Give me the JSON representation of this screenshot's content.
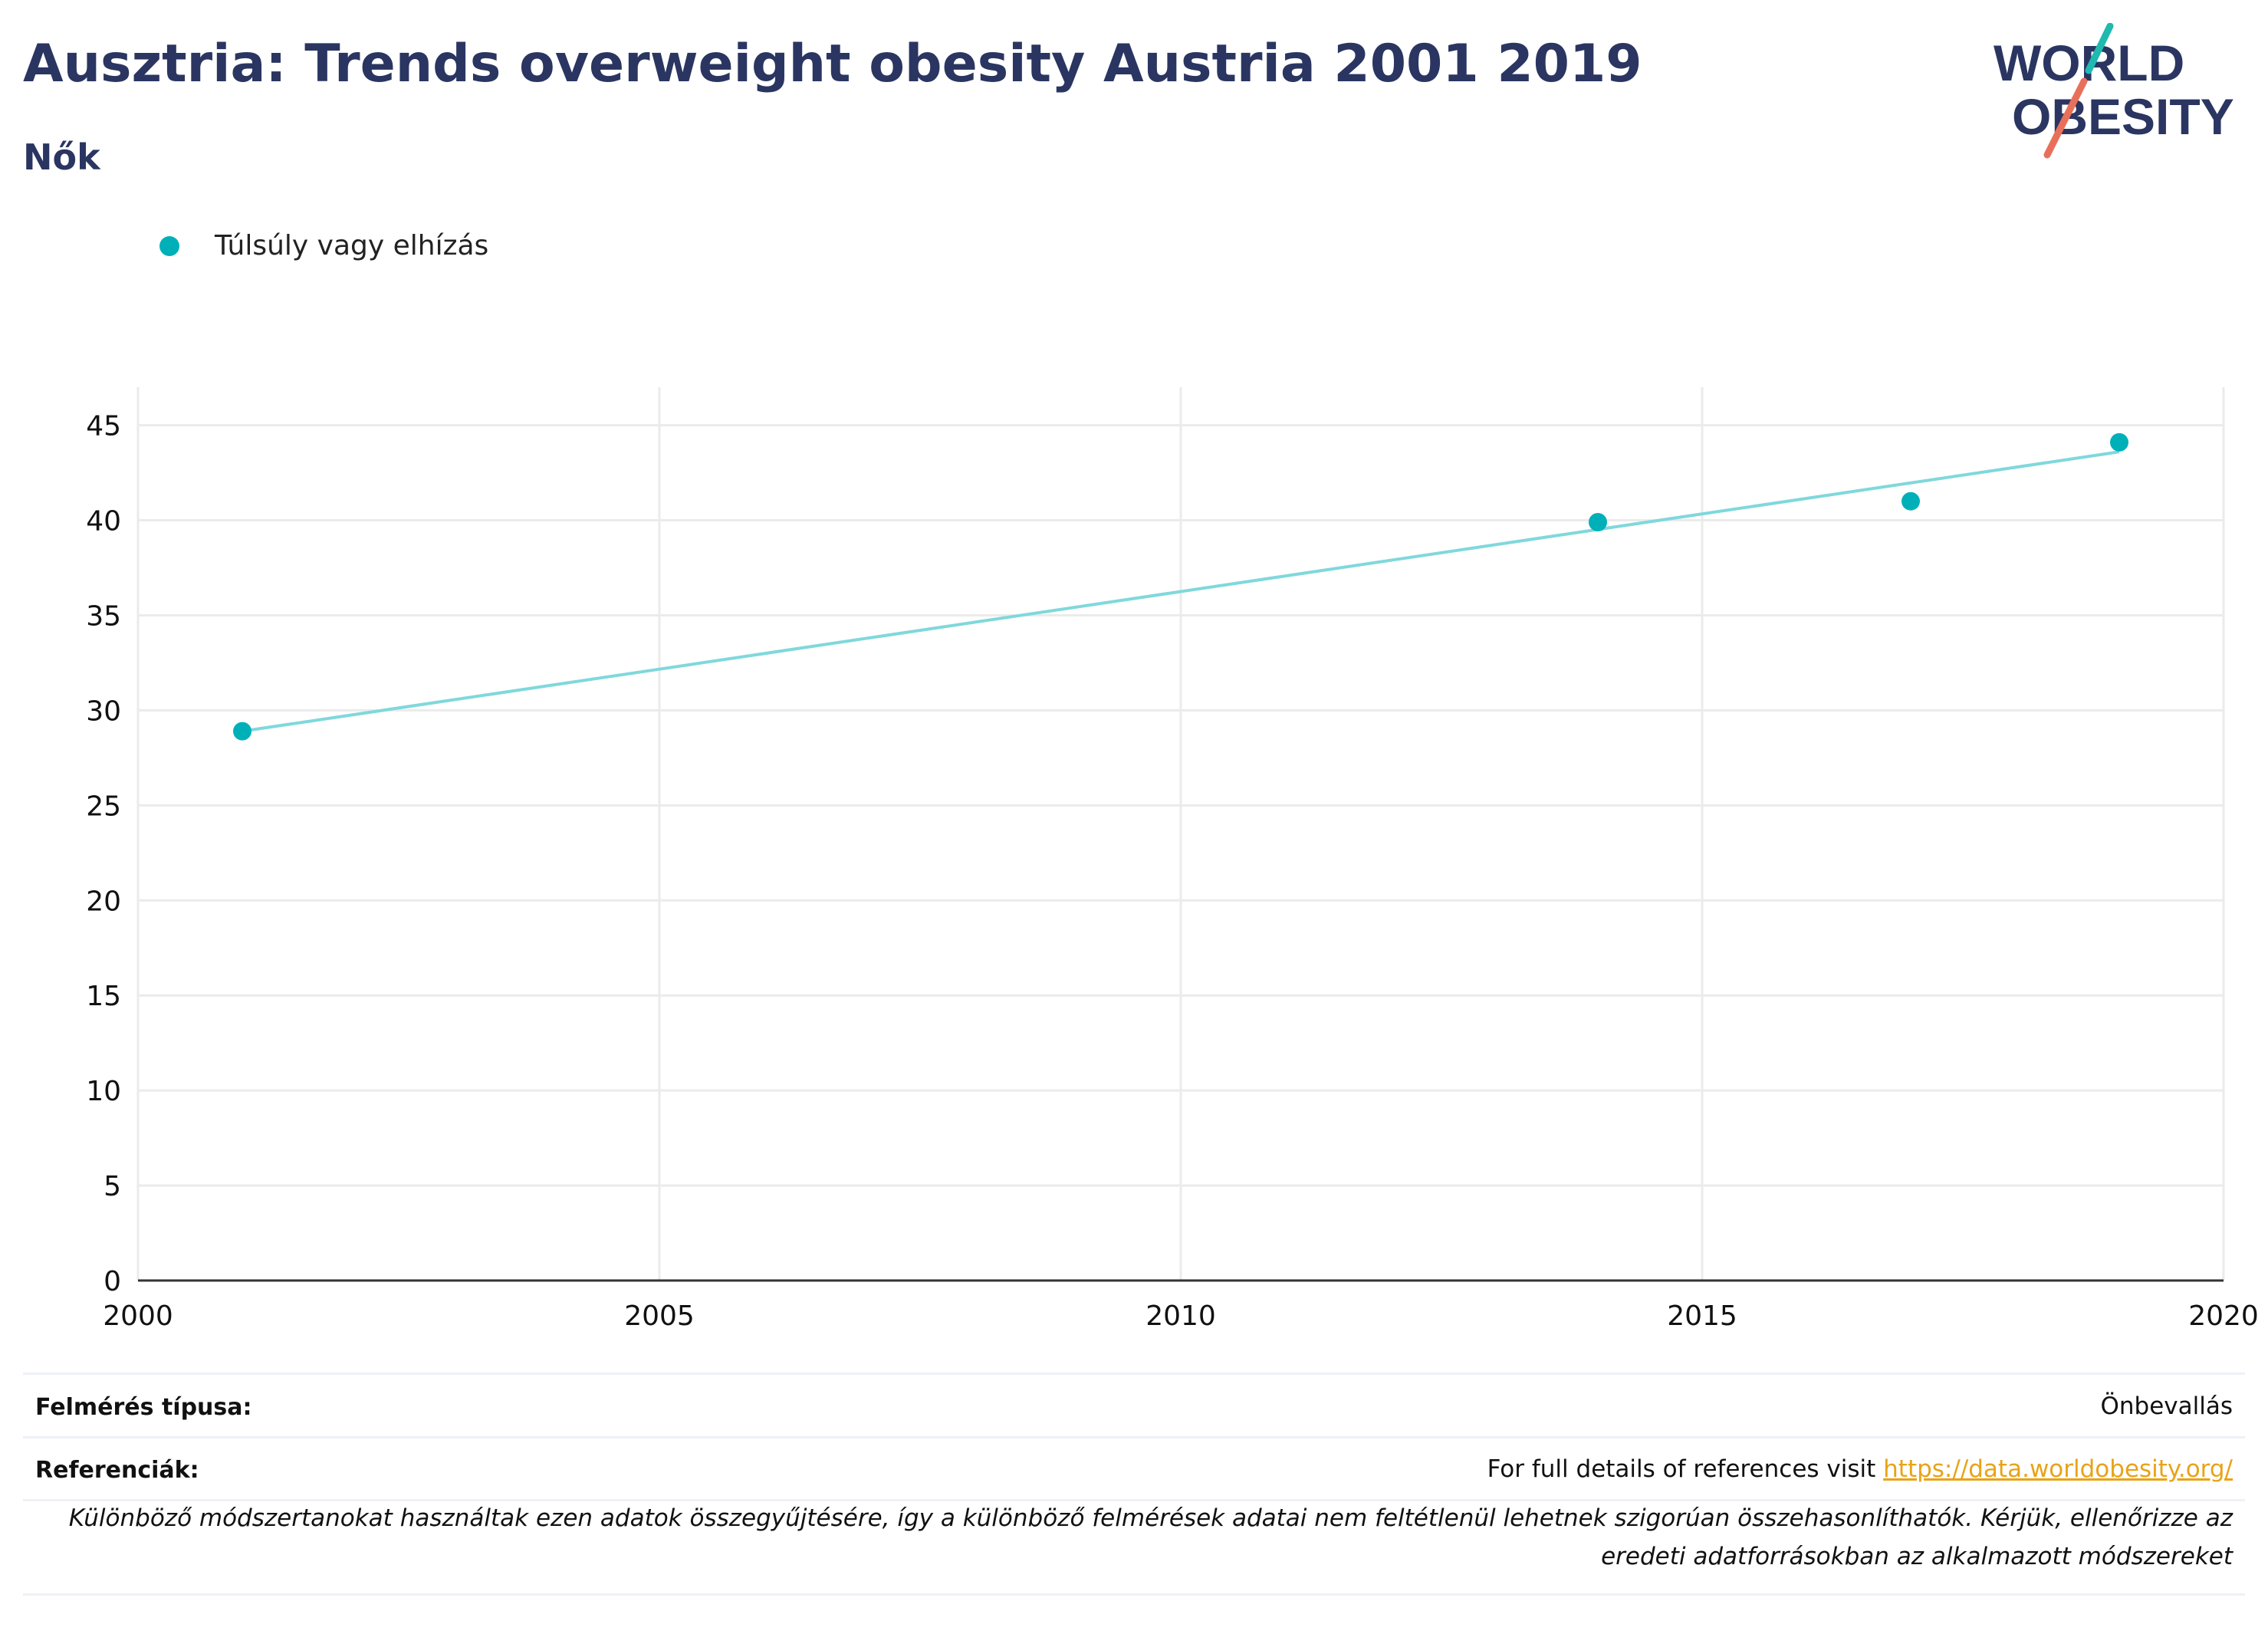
{
  "header": {
    "title": "Ausztria: Trends overweight obesity Austria 2001 2019",
    "subtitle": "Nők"
  },
  "logo": {
    "line1": "WORLD",
    "line2": "OBESITY",
    "text_color": "#2a3561",
    "accent_teal": "#20b9b0",
    "accent_coral": "#e8705a"
  },
  "legend": {
    "label": "Túlsúly vagy elhízás",
    "color": "#00b0b9"
  },
  "chart_data": {
    "type": "scatter",
    "title": "",
    "xlabel": "",
    "ylabel": "",
    "xlim": [
      2000,
      2020
    ],
    "ylim": [
      0,
      47
    ],
    "x_ticks": [
      2000,
      2005,
      2010,
      2015,
      2020
    ],
    "y_ticks": [
      0,
      5,
      10,
      15,
      20,
      25,
      30,
      35,
      40,
      45
    ],
    "grid": true,
    "legend_position": "top-left",
    "series": [
      {
        "name": "Túlsúly vagy elhízás",
        "color": "#00b0b9",
        "x": [
          2001,
          2014,
          2017,
          2019
        ],
        "y": [
          28.9,
          39.9,
          41.0,
          44.1
        ]
      }
    ],
    "trendline": {
      "color": "#7fd8dc",
      "x": [
        2001,
        2019
      ],
      "y": [
        28.9,
        43.6
      ]
    }
  },
  "meta": {
    "survey_label": "Felmérés típusa:",
    "survey_value": "Önbevallás",
    "refs_label": "Referenciák:",
    "refs_text": "For full details of references visit ",
    "refs_link": "https://data.worldobesity.org/",
    "note": "Különböző módszertanokat használtak ezen adatok összegyűjtésére, így a különböző felmérések adatai nem feltétlenül lehetnek szigorúan összehasonlíthatók. Kérjük, ellenőrizze az eredeti adatforrásokban az alkalmazott módszereket"
  }
}
